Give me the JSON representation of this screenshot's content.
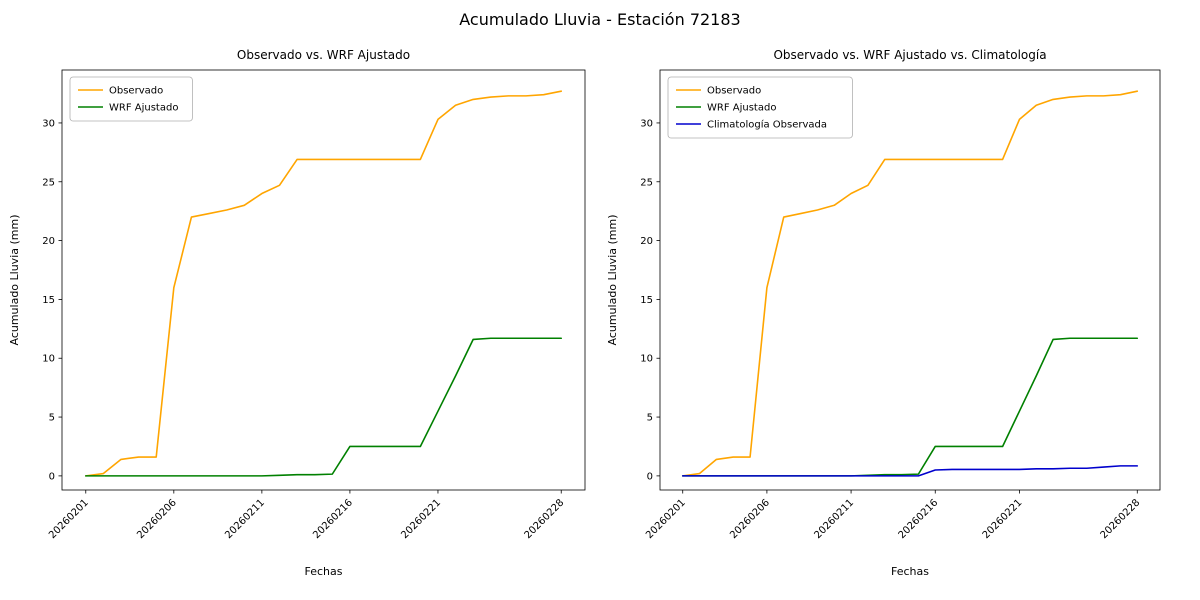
{
  "figure": {
    "title": "Acumulado Lluvia - Estación 72183",
    "background_color": "#ffffff",
    "text_color": "#000000"
  },
  "chart_data": [
    {
      "type": "line",
      "title": "Observado vs. WRF Ajustado",
      "xlabel": "Fechas",
      "ylabel": "Acumulado Lluvia (mm)",
      "legend_position": "upper left",
      "grid": false,
      "x_margin": 1.35,
      "ylim": [
        -1.2,
        34.5
      ],
      "yticks": [
        0,
        5,
        10,
        15,
        20,
        25,
        30
      ],
      "xticks": [
        "20260201",
        "20260206",
        "20260211",
        "20260216",
        "20260221",
        "20260228"
      ],
      "x": [
        "20260201",
        "20260202",
        "20260203",
        "20260204",
        "20260205",
        "20260206",
        "20260207",
        "20260208",
        "20260209",
        "20260210",
        "20260211",
        "20260212",
        "20260213",
        "20260214",
        "20260215",
        "20260216",
        "20260217",
        "20260218",
        "20260219",
        "20260220",
        "20260221",
        "20260222",
        "20260223",
        "20260224",
        "20260225",
        "20260226",
        "20260227",
        "20260228"
      ],
      "series": [
        {
          "name": "Observado",
          "color": "#FFA500",
          "values": [
            0.0,
            0.2,
            1.4,
            1.6,
            1.6,
            16.0,
            22.0,
            22.3,
            22.6,
            23.0,
            24.0,
            24.7,
            26.9,
            26.9,
            26.9,
            26.9,
            26.9,
            26.9,
            26.9,
            26.9,
            30.3,
            31.5,
            32.0,
            32.2,
            32.3,
            32.3,
            32.4,
            32.7
          ]
        },
        {
          "name": "WRF Ajustado",
          "color": "#008000",
          "values": [
            0.0,
            0.0,
            0.0,
            0.0,
            0.0,
            0.0,
            0.0,
            0.0,
            0.0,
            0.0,
            0.0,
            0.05,
            0.1,
            0.1,
            0.15,
            2.5,
            2.5,
            2.5,
            2.5,
            2.5,
            5.5,
            8.5,
            11.6,
            11.7,
            11.7,
            11.7,
            11.7,
            11.7
          ]
        }
      ]
    },
    {
      "type": "line",
      "title": "Observado vs. WRF Ajustado vs. Climatología",
      "xlabel": "Fechas",
      "ylabel": "Acumulado Lluvia (mm)",
      "legend_position": "upper left",
      "grid": false,
      "x_margin": 1.35,
      "ylim": [
        -1.2,
        34.5
      ],
      "yticks": [
        0,
        5,
        10,
        15,
        20,
        25,
        30
      ],
      "xticks": [
        "20260201",
        "20260206",
        "20260211",
        "20260216",
        "20260221",
        "20260228"
      ],
      "x": [
        "20260201",
        "20260202",
        "20260203",
        "20260204",
        "20260205",
        "20260206",
        "20260207",
        "20260208",
        "20260209",
        "20260210",
        "20260211",
        "20260212",
        "20260213",
        "20260214",
        "20260215",
        "20260216",
        "20260217",
        "20260218",
        "20260219",
        "20260220",
        "20260221",
        "20260222",
        "20260223",
        "20260224",
        "20260225",
        "20260226",
        "20260227",
        "20260228"
      ],
      "series": [
        {
          "name": "Observado",
          "color": "#FFA500",
          "values": [
            0.0,
            0.2,
            1.4,
            1.6,
            1.6,
            16.0,
            22.0,
            22.3,
            22.6,
            23.0,
            24.0,
            24.7,
            26.9,
            26.9,
            26.9,
            26.9,
            26.9,
            26.9,
            26.9,
            26.9,
            30.3,
            31.5,
            32.0,
            32.2,
            32.3,
            32.3,
            32.4,
            32.7
          ]
        },
        {
          "name": "WRF Ajustado",
          "color": "#008000",
          "values": [
            0.0,
            0.0,
            0.0,
            0.0,
            0.0,
            0.0,
            0.0,
            0.0,
            0.0,
            0.0,
            0.0,
            0.05,
            0.1,
            0.1,
            0.15,
            2.5,
            2.5,
            2.5,
            2.5,
            2.5,
            5.5,
            8.5,
            11.6,
            11.7,
            11.7,
            11.7,
            11.7,
            11.7
          ]
        },
        {
          "name": "Climatología Observada",
          "color": "#0000CD",
          "values": [
            0.0,
            0.0,
            0.0,
            0.0,
            0.0,
            0.0,
            0.0,
            0.0,
            0.0,
            0.0,
            0.0,
            0.0,
            0.0,
            0.0,
            0.0,
            0.5,
            0.55,
            0.55,
            0.55,
            0.55,
            0.55,
            0.6,
            0.6,
            0.65,
            0.65,
            0.75,
            0.85,
            0.85
          ]
        }
      ]
    }
  ]
}
